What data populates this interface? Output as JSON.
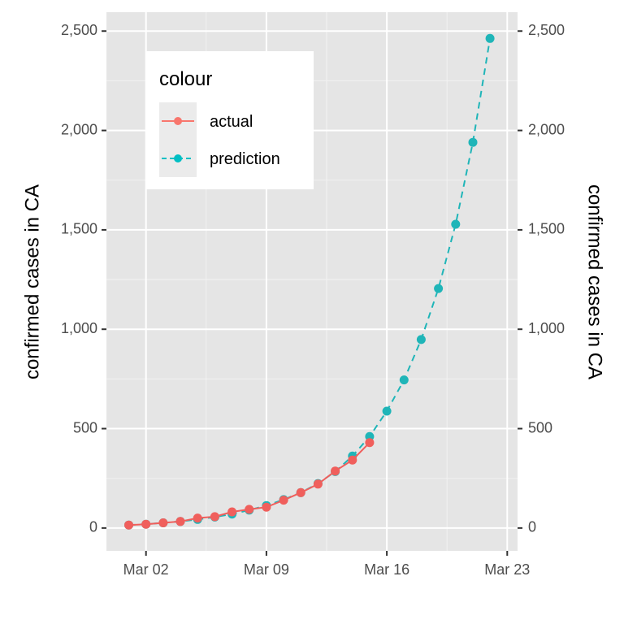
{
  "chart_data": {
    "type": "line",
    "title": "",
    "ylabel_left": "confirmed cases in CA",
    "ylabel_right": "confirmed cases in CA",
    "xlabel": "",
    "x_ticks": [
      "Mar 02",
      "Mar 09",
      "Mar 16",
      "Mar 23"
    ],
    "x_tick_days": [
      2,
      9,
      16,
      23
    ],
    "xlim_days": [
      -0.3,
      23.6
    ],
    "y_ticks": [
      0,
      500,
      1000,
      1500,
      2000,
      2500
    ],
    "y_tick_labels": [
      "0",
      "500",
      "1,000",
      "1,500",
      "2,000",
      "2,500"
    ],
    "ylim": [
      -115,
      2595
    ],
    "grid": true,
    "background": "#e5e5e5",
    "legend": {
      "title": "colour",
      "position": "top-left",
      "entries": [
        {
          "label": "actual",
          "color": "#f8766d",
          "line": "solid"
        },
        {
          "label": "prediction",
          "color": "#00bfc4",
          "line": "dashed"
        }
      ]
    },
    "series": [
      {
        "name": "prediction",
        "color": "#1fb5b8",
        "line": "dashed",
        "x_days": [
          1,
          2,
          3,
          4,
          5,
          6,
          7,
          8,
          9,
          10,
          11,
          12,
          13,
          14,
          15,
          16,
          17,
          18,
          19,
          20,
          21,
          22
        ],
        "values": [
          15,
          19,
          26,
          33,
          43,
          55,
          70,
          90,
          113,
          143,
          178,
          224,
          284,
          362,
          460,
          588,
          745,
          948,
          1205,
          1528,
          1940,
          2463
        ]
      },
      {
        "name": "actual",
        "color": "#f05f5c",
        "line": "solid",
        "x_days": [
          1,
          2,
          3,
          4,
          5,
          6,
          7,
          8,
          9,
          10,
          11,
          12,
          13,
          14,
          15
        ],
        "values": [
          15,
          19,
          26,
          33,
          50,
          57,
          81,
          94,
          105,
          140,
          178,
          221,
          287,
          342,
          430
        ]
      }
    ]
  }
}
